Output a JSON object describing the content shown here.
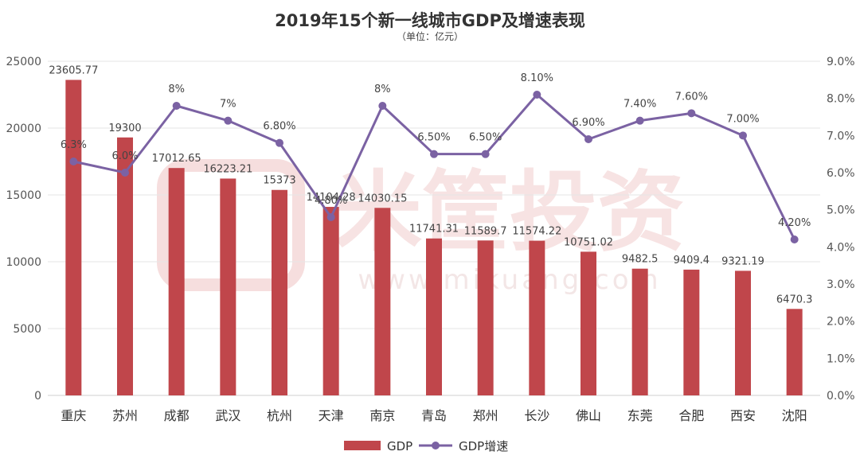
{
  "chart_data": {
    "type": "bar+line",
    "title": "2019年15个新一线城市GDP及增速表现",
    "subtitle": "（单位：亿元）",
    "categories": [
      "重庆",
      "苏州",
      "成都",
      "武汉",
      "杭州",
      "天津",
      "南京",
      "青岛",
      "郑州",
      "长沙",
      "佛山",
      "东莞",
      "合肥",
      "西安",
      "沈阳"
    ],
    "series": [
      {
        "name": "GDP",
        "type": "bar",
        "axis": "left",
        "color": "#c0464b",
        "values": [
          23605.77,
          19300,
          17012.65,
          16223.21,
          15373,
          14104.28,
          14030.15,
          11741.31,
          11589.7,
          11574.22,
          10751.02,
          9482.5,
          9409.4,
          9321.19,
          6470.3
        ],
        "labels": [
          "23605.77",
          "19300",
          "17012.65",
          "16223.21",
          "15373",
          "14104.28",
          "14030.15",
          "11741.31",
          "11589.7",
          "11574.22",
          "10751.02",
          "9482.5",
          "9409.4",
          "9321.19",
          "6470.3"
        ]
      },
      {
        "name": "GDP增速",
        "type": "line",
        "axis": "right",
        "color": "#7b62a3",
        "values": [
          6.3,
          6.0,
          7.8,
          7.4,
          6.8,
          4.8,
          7.8,
          6.5,
          6.5,
          8.1,
          6.9,
          7.4,
          7.6,
          7.0,
          4.2
        ],
        "labels": [
          "6.3%",
          "6.0%",
          "8%",
          "7%",
          "6.80%",
          "4.80%",
          "8%",
          "6.50%",
          "6.50%",
          "8.10%",
          "6.90%",
          "7.40%",
          "7.60%",
          "7.00%",
          "4.20%"
        ]
      }
    ],
    "y_left": {
      "min": 0,
      "max": 25000,
      "ticks": [
        "0",
        "5000",
        "10000",
        "15000",
        "20000",
        "25000"
      ]
    },
    "y_right": {
      "min": 0,
      "max": 9,
      "ticks": [
        "0.0%",
        "1.0%",
        "2.0%",
        "3.0%",
        "4.0%",
        "5.0%",
        "6.0%",
        "7.0%",
        "8.0%",
        "9.0%"
      ]
    },
    "legend": {
      "position": "bottom-center",
      "items": [
        "GDP",
        "GDP增速"
      ]
    },
    "watermark": {
      "text": "米筐投资",
      "subtext": "www.mikuang.com"
    },
    "grid": true
  }
}
